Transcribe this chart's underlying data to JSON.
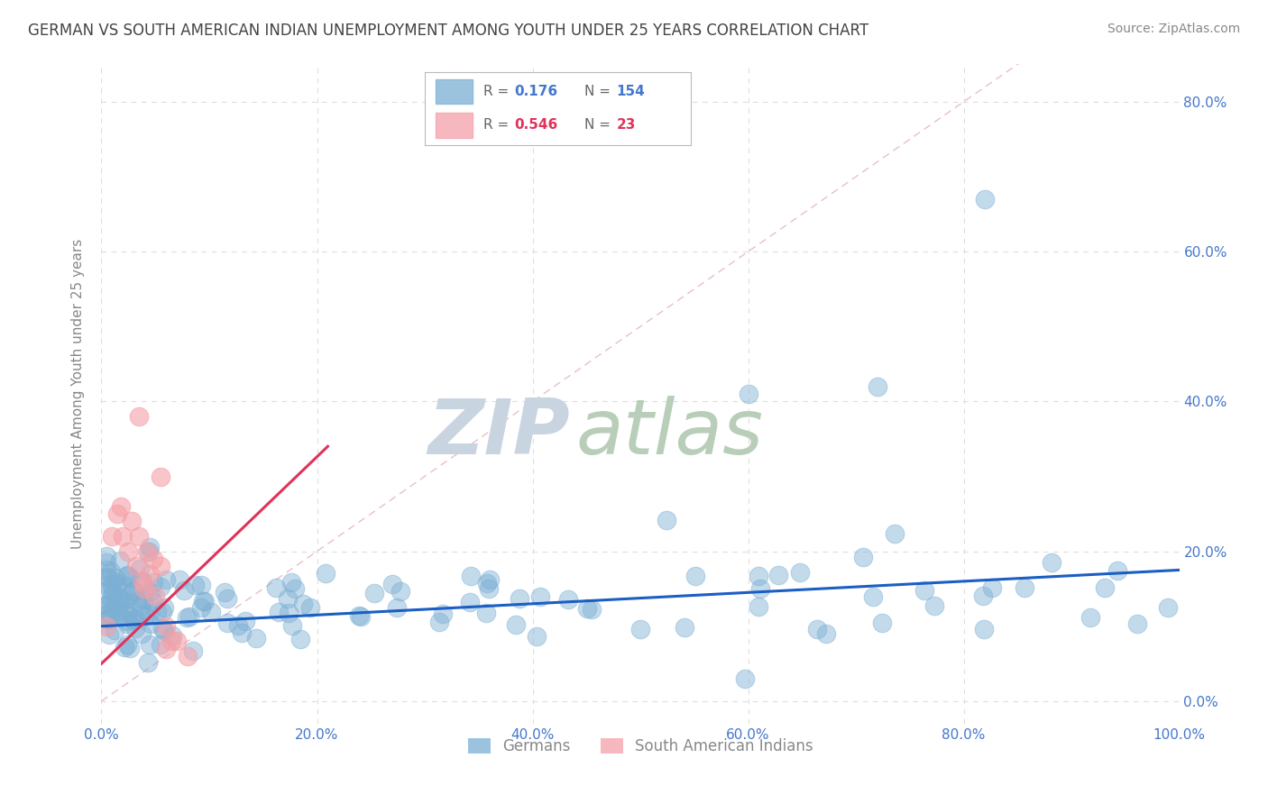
{
  "title": "GERMAN VS SOUTH AMERICAN INDIAN UNEMPLOYMENT AMONG YOUTH UNDER 25 YEARS CORRELATION CHART",
  "source": "Source: ZipAtlas.com",
  "ylabel": "Unemployment Among Youth under 25 years",
  "xlim": [
    0,
    1.0
  ],
  "ylim": [
    -0.03,
    0.85
  ],
  "xticks": [
    0.0,
    0.2,
    0.4,
    0.6,
    0.8,
    1.0
  ],
  "xtick_labels": [
    "0.0%",
    "20.0%",
    "40.0%",
    "60.0%",
    "80.0%",
    "100.0%"
  ],
  "yticks": [
    0.0,
    0.2,
    0.4,
    0.6,
    0.8
  ],
  "right_ytick_labels": [
    "0.0%",
    "20.0%",
    "40.0%",
    "60.0%",
    "80.0%"
  ],
  "german_R": 0.176,
  "german_N": 154,
  "sai_R": 0.546,
  "sai_N": 23,
  "german_color": "#7BAFD4",
  "sai_color": "#F4A0A8",
  "trend_blue": "#1B5EC4",
  "trend_pink": "#E0325A",
  "diag_color": "#E8C0C8",
  "watermark_zip": "ZIP",
  "watermark_atlas": "atlas",
  "watermark_color_zip": "#C8D8E8",
  "watermark_color_atlas": "#B8D0B8",
  "legend_label_german": "Germans",
  "legend_label_sai": "South American Indians",
  "background_color": "#FFFFFF",
  "grid_color": "#DDDDDD",
  "title_color": "#444444",
  "axis_label_color": "#888888",
  "tick_color": "#4477CC",
  "german_trend_x0": 0.0,
  "german_trend_y0": 0.1,
  "german_trend_x1": 1.0,
  "german_trend_y1": 0.175,
  "sai_trend_x0": 0.0,
  "sai_trend_y0": 0.05,
  "sai_trend_x1": 0.21,
  "sai_trend_y1": 0.34
}
